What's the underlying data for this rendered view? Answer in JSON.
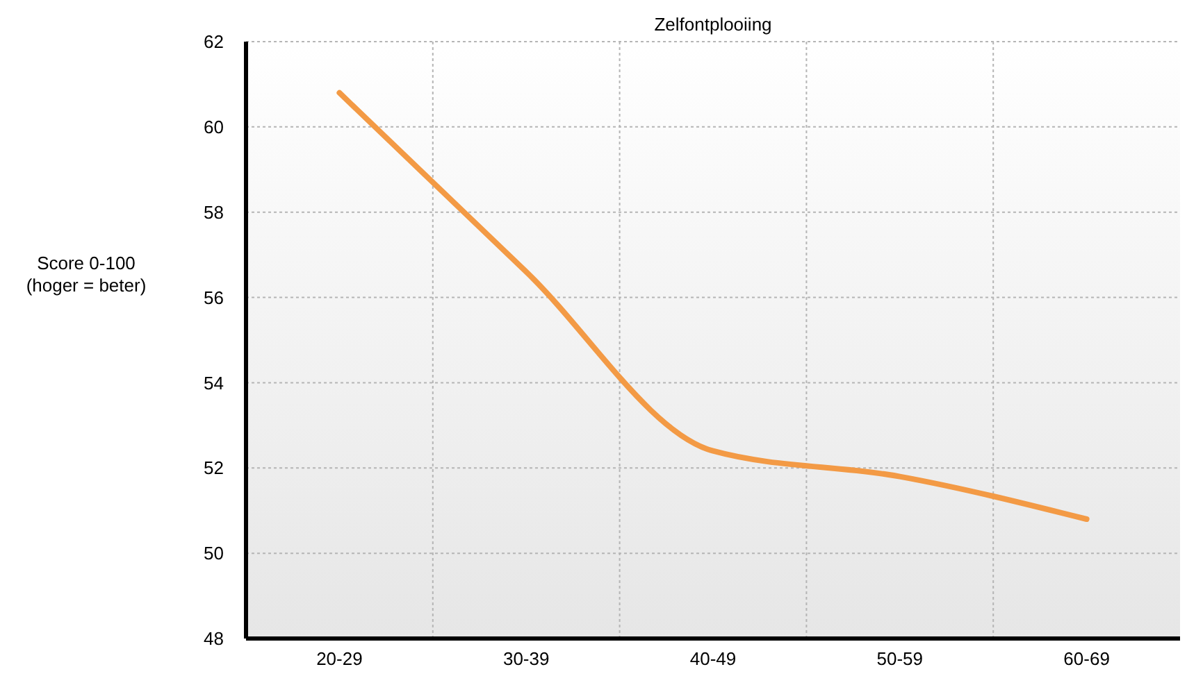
{
  "chart_data": {
    "type": "line",
    "title": "Zelfontplooiing",
    "ylabel": "Score 0-100\n(hoger = beter)",
    "categories": [
      "20-29",
      "30-39",
      "40-49",
      "50-59",
      "60-69"
    ],
    "series": [
      {
        "color": "#f39a45",
        "values": [
          60.8,
          56.6,
          52.4,
          51.8,
          50.8
        ]
      }
    ],
    "ylim": [
      48,
      62
    ],
    "yticks": [
      48,
      50,
      52,
      54,
      56,
      58,
      60,
      62
    ],
    "grid": true,
    "marker": "none",
    "line_style": "solid"
  }
}
